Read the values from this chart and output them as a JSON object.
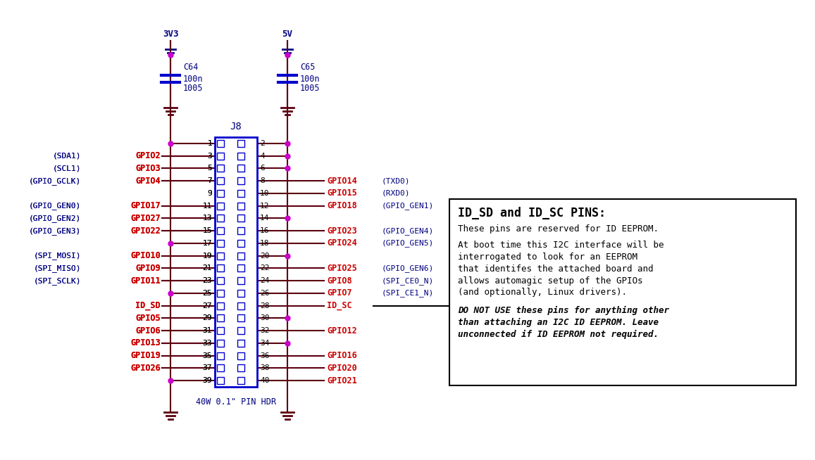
{
  "bg_color": "#ffffff",
  "wire_color": "#5c0010",
  "red": "#cc0000",
  "blue": "#0000cc",
  "magenta": "#cc00cc",
  "dark_blue": "#000080",
  "black": "#000000",
  "connector_label": "J8",
  "connector_sublabel": "40W 0.1\" PIN HDR",
  "power_3v3": "3V3",
  "power_5v": "5V",
  "cap_c64_label": "C64",
  "cap_c64_val1": "100n",
  "cap_c64_val2": "1005",
  "cap_c65_label": "C65",
  "cap_c65_val1": "100n",
  "cap_c65_val2": "1005",
  "left_pins": [
    {
      "pin": 1,
      "net": "",
      "func": ""
    },
    {
      "pin": 3,
      "net": "GPIO2",
      "func": "(SDA1)"
    },
    {
      "pin": 5,
      "net": "GPIO3",
      "func": "(SCL1)"
    },
    {
      "pin": 7,
      "net": "GPIO4",
      "func": "(GPIO_GCLK)"
    },
    {
      "pin": 9,
      "net": "",
      "func": ""
    },
    {
      "pin": 11,
      "net": "GPIO17",
      "func": "(GPIO_GEN0)"
    },
    {
      "pin": 13,
      "net": "GPIO27",
      "func": "(GPIO_GEN2)"
    },
    {
      "pin": 15,
      "net": "GPIO22",
      "func": "(GPIO_GEN3)"
    },
    {
      "pin": 17,
      "net": "",
      "func": ""
    },
    {
      "pin": 19,
      "net": "GPIO10",
      "func": "(SPI_MOSI)"
    },
    {
      "pin": 21,
      "net": "GPIO9",
      "func": "(SPI_MISO)"
    },
    {
      "pin": 23,
      "net": "GPIO11",
      "func": "(SPI_SCLK)"
    },
    {
      "pin": 25,
      "net": "",
      "func": ""
    },
    {
      "pin": 27,
      "net": "ID_SD",
      "func": ""
    },
    {
      "pin": 29,
      "net": "GPIO5",
      "func": ""
    },
    {
      "pin": 31,
      "net": "GPIO6",
      "func": ""
    },
    {
      "pin": 33,
      "net": "GPIO13",
      "func": ""
    },
    {
      "pin": 35,
      "net": "GPIO19",
      "func": ""
    },
    {
      "pin": 37,
      "net": "GPIO26",
      "func": ""
    },
    {
      "pin": 39,
      "net": "",
      "func": ""
    }
  ],
  "right_pins": [
    {
      "pin": 2,
      "net": "",
      "func": ""
    },
    {
      "pin": 4,
      "net": "",
      "func": ""
    },
    {
      "pin": 6,
      "net": "",
      "func": ""
    },
    {
      "pin": 8,
      "net": "GPIO14",
      "func": "(TXD0)"
    },
    {
      "pin": 10,
      "net": "GPIO15",
      "func": "(RXD0)"
    },
    {
      "pin": 12,
      "net": "GPIO18",
      "func": "(GPIO_GEN1)"
    },
    {
      "pin": 14,
      "net": "",
      "func": ""
    },
    {
      "pin": 16,
      "net": "GPIO23",
      "func": "(GPIO_GEN4)"
    },
    {
      "pin": 18,
      "net": "GPIO24",
      "func": "(GPIO_GEN5)"
    },
    {
      "pin": 20,
      "net": "",
      "func": ""
    },
    {
      "pin": 22,
      "net": "GPIO25",
      "func": "(GPIO_GEN6)"
    },
    {
      "pin": 24,
      "net": "GPIO8",
      "func": "(SPI_CE0_N)"
    },
    {
      "pin": 26,
      "net": "GPIO7",
      "func": "(SPI_CE1_N)"
    },
    {
      "pin": 28,
      "net": "ID_SC",
      "func": ""
    },
    {
      "pin": 30,
      "net": "",
      "func": ""
    },
    {
      "pin": 32,
      "net": "GPIO12",
      "func": ""
    },
    {
      "pin": 34,
      "net": "",
      "func": ""
    },
    {
      "pin": 36,
      "net": "GPIO16",
      "func": ""
    },
    {
      "pin": 38,
      "net": "GPIO20",
      "func": ""
    },
    {
      "pin": 40,
      "net": "GPIO21",
      "func": ""
    }
  ],
  "note_title": "ID_SD and ID_SC PINS:",
  "note_body1": "These pins are reserved for ID EEPROM.",
  "note_body2_lines": [
    "At boot time this I2C interface will be",
    "interrogated to look for an EEPROM",
    "that identifes the attached board and",
    "allows automagic setup of the GPIOs",
    "(and optionally, Linux drivers)."
  ],
  "note_body3_lines": [
    "DO NOT USE these pins for anything other",
    "than attaching an I2C ID EEPROM. Leave",
    "unconnected if ID EEPROM not required."
  ]
}
